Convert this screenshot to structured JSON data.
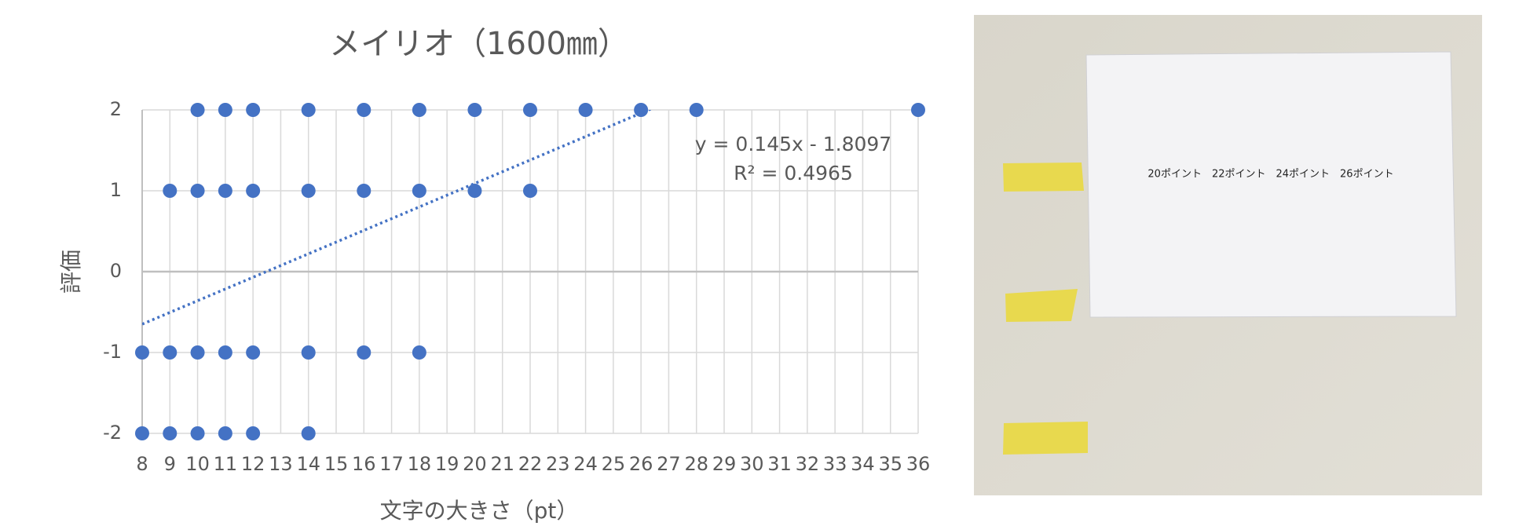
{
  "chart_data": {
    "type": "scatter",
    "title": "メイリオ（1600㎜）",
    "x_label": "文字の大きさ（pt）",
    "y_label": "評価",
    "series": [
      {
        "name": "評価",
        "color": "#4472c4",
        "x": [
          10,
          11,
          12,
          14,
          16,
          18,
          20,
          22,
          24,
          26,
          28,
          36,
          9,
          10,
          11,
          12,
          14,
          16,
          18,
          20,
          22,
          8,
          9,
          10,
          11,
          12,
          14,
          16,
          18,
          8,
          9,
          10,
          11,
          12,
          14
        ],
        "values": [
          2,
          2,
          2,
          2,
          2,
          2,
          2,
          2,
          2,
          2,
          2,
          2,
          1,
          1,
          1,
          1,
          1,
          1,
          1,
          1,
          1,
          -1,
          -1,
          -1,
          -1,
          -1,
          -1,
          -1,
          -1,
          -2,
          -2,
          -2,
          -2,
          -2,
          -2
        ]
      }
    ],
    "trendline": {
      "slope": 0.145,
      "intercept": -1.8097,
      "equation": "y = 0.145x - 1.8097",
      "r2_label": "R² = 0.4965"
    },
    "xlim": [
      8,
      36
    ],
    "xticks": [
      8,
      9,
      10,
      11,
      12,
      13,
      14,
      15,
      16,
      17,
      18,
      19,
      20,
      21,
      22,
      23,
      24,
      25,
      26,
      27,
      28,
      29,
      30,
      31,
      32,
      33,
      34,
      35,
      36
    ],
    "ylim": [
      -2,
      2
    ],
    "yticks": [
      -2,
      -1,
      0,
      1,
      2
    ],
    "grid": true
  },
  "photo": {
    "paper_text": "20ポイント　22ポイント　24ポイント　26ポイント"
  }
}
